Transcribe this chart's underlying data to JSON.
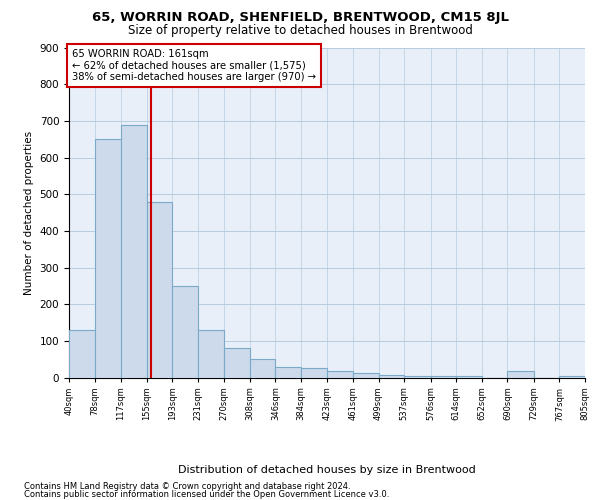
{
  "title": "65, WORRIN ROAD, SHENFIELD, BRENTWOOD, CM15 8JL",
  "subtitle": "Size of property relative to detached houses in Brentwood",
  "xlabel": "Distribution of detached houses by size in Brentwood",
  "ylabel": "Number of detached properties",
  "footer_line1": "Contains HM Land Registry data © Crown copyright and database right 2024.",
  "footer_line2": "Contains public sector information licensed under the Open Government Licence v3.0.",
  "annotation_line1": "65 WORRIN ROAD: 161sqm",
  "annotation_line2": "← 62% of detached houses are smaller (1,575)",
  "annotation_line3": "38% of semi-detached houses are larger (970) →",
  "bin_edges": [
    40,
    78,
    117,
    155,
    193,
    231,
    270,
    308,
    346,
    384,
    423,
    461,
    499,
    537,
    576,
    614,
    652,
    690,
    729,
    767,
    805
  ],
  "bin_counts": [
    130,
    650,
    690,
    480,
    250,
    130,
    80,
    50,
    30,
    25,
    18,
    12,
    8,
    5,
    4,
    3,
    0,
    18,
    0,
    4
  ],
  "bar_color": "#ccdaeb",
  "bar_edge_color": "#7aaac8",
  "vline_color": "#cc0000",
  "vline_x": 161,
  "annotation_box_edge": "#cc0000",
  "bg_color": "#ffffff",
  "plot_bg_color": "#e8eff8",
  "grid_color": "#b8cce0",
  "ylim": [
    0,
    900
  ],
  "yticks": [
    0,
    100,
    200,
    300,
    400,
    500,
    600,
    700,
    800,
    900
  ]
}
